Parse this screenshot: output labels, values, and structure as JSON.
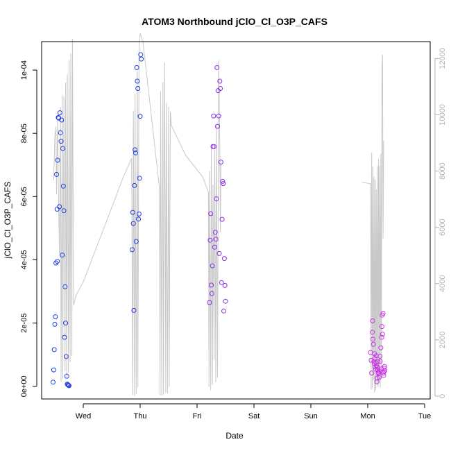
{
  "chart_data": {
    "type": "scatter",
    "title": "ATOM3 Northbound jClO_Cl_O3P_CAFS",
    "xlabel": "Date",
    "ylabel": "jClO_Cl_O3P_CAFS",
    "x_unit": "days",
    "x_range": [
      0,
      6.35
    ],
    "ylim_left": [
      -4e-06,
      0.000109
    ],
    "ylim_right": [
      -100,
      12600
    ],
    "x_ticks": [
      {
        "label": "Wed",
        "value": 0.5
      },
      {
        "label": "Thu",
        "value": 1.5
      },
      {
        "label": "Fri",
        "value": 2.5
      },
      {
        "label": "Sat",
        "value": 3.5
      },
      {
        "label": "Sun",
        "value": 4.5
      },
      {
        "label": "Mon",
        "value": 5.5
      },
      {
        "label": "Tue",
        "value": 6.5
      }
    ],
    "y_ticks_left": [
      {
        "label": "0e+00",
        "value": 0
      },
      {
        "label": "2e-05",
        "value": 2e-05
      },
      {
        "label": "4e-05",
        "value": 4e-05
      },
      {
        "label": "6e-05",
        "value": 6e-05
      },
      {
        "label": "8e-05",
        "value": 8e-05
      },
      {
        "label": "1e-04",
        "value": 0.0001
      }
    ],
    "y_ticks_right": [
      {
        "label": "0",
        "value": 0
      },
      {
        "label": "2000",
        "value": 2000
      },
      {
        "label": "4000",
        "value": 4000
      },
      {
        "label": "6000",
        "value": 6000
      },
      {
        "label": "8000",
        "value": 8000
      },
      {
        "label": "10000",
        "value": 10000
      },
      {
        "label": "12000",
        "value": 12000
      }
    ],
    "altitude_series": {
      "color": "#c8c8c8",
      "points": [
        [
          -0.02,
          7670
        ],
        [
          0.0,
          9170
        ],
        [
          0.02,
          9580
        ],
        [
          0.03,
          7170
        ],
        [
          0.05,
          9840
        ],
        [
          0.07,
          6620
        ],
        [
          0.08,
          5040
        ],
        [
          0.1,
          10270
        ],
        [
          0.11,
          510
        ],
        [
          0.13,
          10690
        ],
        [
          0.14,
          610
        ],
        [
          0.16,
          10650
        ],
        [
          0.18,
          880
        ],
        [
          0.19,
          11150
        ],
        [
          0.21,
          680
        ],
        [
          0.22,
          11430
        ],
        [
          0.24,
          840
        ],
        [
          0.25,
          11930
        ],
        [
          0.27,
          1210
        ],
        [
          0.28,
          12180
        ],
        [
          0.3,
          1430
        ],
        [
          0.31,
          12700
        ],
        [
          0.33,
          3240
        ],
        [
          0.37,
          3570
        ],
        [
          0.5,
          4060
        ],
        [
          1.0,
          6700
        ],
        [
          1.2,
          7770
        ],
        [
          1.35,
          8450
        ],
        [
          1.37,
          40
        ],
        [
          1.38,
          10150
        ],
        [
          1.4,
          10
        ],
        [
          1.41,
          10750
        ],
        [
          1.43,
          80
        ],
        [
          1.45,
          11530
        ],
        [
          1.46,
          320
        ],
        [
          1.48,
          12400
        ],
        [
          1.5,
          12900
        ],
        [
          1.55,
          12580
        ],
        [
          1.84,
          7390
        ],
        [
          1.85,
          30
        ],
        [
          1.86,
          10840
        ],
        [
          1.88,
          30
        ],
        [
          1.9,
          11150
        ],
        [
          1.91,
          50
        ],
        [
          1.93,
          11860
        ],
        [
          1.95,
          130
        ],
        [
          1.96,
          10420
        ],
        [
          1.98,
          100
        ],
        [
          2.0,
          10290
        ],
        [
          2.01,
          320
        ],
        [
          2.03,
          10110
        ],
        [
          2.05,
          9610
        ],
        [
          2.3,
          8560
        ],
        [
          2.6,
          7790
        ],
        [
          2.7,
          7250
        ],
        [
          2.71,
          340
        ],
        [
          2.72,
          8000
        ],
        [
          2.74,
          210
        ],
        [
          2.75,
          8960
        ],
        [
          2.77,
          400
        ],
        [
          2.78,
          7520
        ],
        [
          2.8,
          1300
        ],
        [
          2.81,
          8760
        ],
        [
          2.83,
          490
        ],
        [
          2.84,
          9610
        ],
        [
          2.86,
          650
        ],
        [
          2.88,
          11930
        ],
        [
          2.9,
          8800
        ],
        [
          2.91,
          5810
        ],
        [
          2.92,
          8280
        ]
      ]
    },
    "series": [
      {
        "color": "#1f3de0",
        "points": [
          [
            -0.03,
            1.3e-06
          ],
          [
            -0.02,
            5.2e-06
          ],
          [
            -0.01,
            1.16e-05
          ],
          [
            0.0,
            1.96e-05
          ],
          [
            0.01,
            2.2e-05
          ],
          [
            0.02,
            3.9e-05
          ],
          [
            0.03,
            6.7e-05
          ],
          [
            0.04,
            5.6e-05
          ],
          [
            0.045,
            3.95e-05
          ],
          [
            0.05,
            7.15e-05
          ],
          [
            0.06,
            8.5e-05
          ],
          [
            0.07,
            8.48e-05
          ],
          [
            0.08,
            5.68e-05
          ],
          [
            0.09,
            8.65e-05
          ],
          [
            0.1,
            8.02e-05
          ],
          [
            0.11,
            7.75e-05
          ],
          [
            0.12,
            8.42e-05
          ],
          [
            0.13,
            4.15e-05
          ],
          [
            0.14,
            7.52e-05
          ],
          [
            0.15,
            6.33e-05
          ],
          [
            0.16,
            5.55e-05
          ],
          [
            0.17,
            1.55e-05
          ],
          [
            0.18,
            3.15e-05
          ],
          [
            0.19,
            2e-05
          ],
          [
            0.2,
            9.4e-06
          ],
          [
            0.21,
            3.2e-06
          ],
          [
            0.22,
            7e-07
          ],
          [
            0.23,
            5e-07
          ],
          [
            0.24,
            3e-07
          ],
          [
            0.25,
            2e-07
          ],
          [
            1.36,
            4.32e-05
          ],
          [
            1.37,
            5.5e-05
          ],
          [
            1.38,
            5.15e-05
          ],
          [
            1.39,
            2.4e-05
          ],
          [
            1.4,
            6.35e-05
          ],
          [
            1.41,
            7.48e-05
          ],
          [
            1.42,
            7.38e-05
          ],
          [
            1.43,
            4.58e-05
          ],
          [
            1.44,
            0.0001008
          ],
          [
            1.45,
            9.65e-05
          ],
          [
            1.46,
            9.42e-05
          ],
          [
            1.47,
            5.29e-05
          ],
          [
            1.48,
            5.45e-05
          ],
          [
            1.49,
            6.58e-05
          ],
          [
            1.5,
            8.54e-05
          ],
          [
            1.51,
            0.0001049
          ],
          [
            1.52,
            0.0001035
          ]
        ]
      },
      {
        "color": "#8b2ee8",
        "points": [
          [
            2.72,
            2.65e-05
          ],
          [
            2.73,
            4.62e-05
          ],
          [
            2.74,
            5.46e-05
          ],
          [
            2.75,
            3.2e-05
          ],
          [
            2.76,
            2.93e-05
          ],
          [
            2.77,
            3.81e-05
          ],
          [
            2.78,
            7.58e-05
          ],
          [
            2.79,
            8.55e-05
          ],
          [
            2.8,
            7.58e-05
          ],
          [
            2.81,
            4.4e-05
          ],
          [
            2.82,
            4.87e-05
          ],
          [
            2.83,
            4.65e-05
          ],
          [
            2.84,
            5.93e-05
          ],
          [
            2.85,
            0.0001008
          ],
          [
            2.86,
            8.22e-05
          ],
          [
            2.87,
            9.35e-05
          ],
          [
            2.88,
            8.55e-05
          ],
          [
            2.89,
            4.2e-05
          ],
          [
            2.9,
            9.65e-05
          ],
          [
            2.91,
            9.42e-05
          ],
          [
            2.92,
            7.09e-05
          ],
          [
            2.93,
            3.28e-05
          ],
          [
            2.94,
            5.28e-05
          ],
          [
            2.95,
            6.48e-05
          ],
          [
            2.96,
            6.41e-05
          ],
          [
            2.97,
            2.38e-05
          ],
          [
            2.98,
            4.04e-05
          ],
          [
            2.99,
            3.19e-05
          ],
          [
            3.0,
            2.69e-05
          ]
        ]
      },
      {
        "color": "#cc33e6",
        "points": [
          [
            5.55,
            1.07e-05
          ],
          [
            5.56,
            8.2e-06
          ],
          [
            5.57,
            4.2e-06
          ],
          [
            5.58,
            1.71e-05
          ],
          [
            5.585,
            2.07e-05
          ],
          [
            5.59,
            1.49e-05
          ],
          [
            5.6,
            1.33e-05
          ],
          [
            5.61,
            7.9e-06
          ],
          [
            5.615,
            7.2e-06
          ],
          [
            5.62,
            1.03e-05
          ],
          [
            5.625,
            8.8e-06
          ],
          [
            5.63,
            6.2e-06
          ],
          [
            5.64,
            5.4e-06
          ],
          [
            5.645,
            7.5e-06
          ],
          [
            5.65,
            9.7e-06
          ],
          [
            5.655,
            6.5e-06
          ],
          [
            5.66,
            1.4e-06
          ],
          [
            5.665,
            2.6e-06
          ],
          [
            5.67,
            6e-06
          ],
          [
            5.675,
            5.2e-06
          ],
          [
            5.68,
            7.8e-06
          ],
          [
            5.685,
            4.5e-06
          ],
          [
            5.69,
            4e-06
          ],
          [
            5.695,
            4.2e-06
          ],
          [
            5.7,
            2.8e-06
          ],
          [
            5.71,
            4.8e-06
          ],
          [
            5.715,
            9.5e-06
          ],
          [
            5.72,
            7.9e-06
          ],
          [
            5.73,
            1.22e-05
          ],
          [
            5.74,
            5.5e-06
          ],
          [
            5.745,
            1.55e-05
          ],
          [
            5.75,
            1.89e-05
          ],
          [
            5.755,
            2.25e-05
          ],
          [
            5.76,
            1.65e-05
          ],
          [
            5.77,
            2.31e-05
          ],
          [
            5.775,
            4.2e-06
          ],
          [
            5.78,
            3.4e-06
          ],
          [
            5.785,
            4.6e-06
          ],
          [
            5.79,
            5.7e-06
          ],
          [
            5.795,
            6.3e-06
          ],
          [
            5.8,
            4.9e-06
          ]
        ]
      }
    ],
    "altitude_series_2": {
      "color": "#c8c8c8",
      "points": [
        [
          5.4,
          7600
        ],
        [
          5.55,
          7550
        ],
        [
          5.56,
          240
        ],
        [
          5.57,
          8650
        ],
        [
          5.58,
          290
        ],
        [
          5.59,
          8160
        ],
        [
          5.6,
          560
        ],
        [
          5.61,
          7800
        ],
        [
          5.62,
          130
        ],
        [
          5.63,
          7710
        ],
        [
          5.64,
          230
        ],
        [
          5.65,
          7340
        ],
        [
          5.66,
          430
        ],
        [
          5.67,
          8180
        ],
        [
          5.68,
          330
        ],
        [
          5.69,
          8430
        ],
        [
          5.7,
          470
        ],
        [
          5.71,
          8180
        ],
        [
          5.72,
          300
        ],
        [
          5.73,
          8610
        ],
        [
          5.74,
          620
        ],
        [
          5.75,
          11580
        ],
        [
          5.76,
          12130
        ],
        [
          5.77,
          5610
        ],
        [
          5.78,
          9080
        ]
      ]
    }
  }
}
